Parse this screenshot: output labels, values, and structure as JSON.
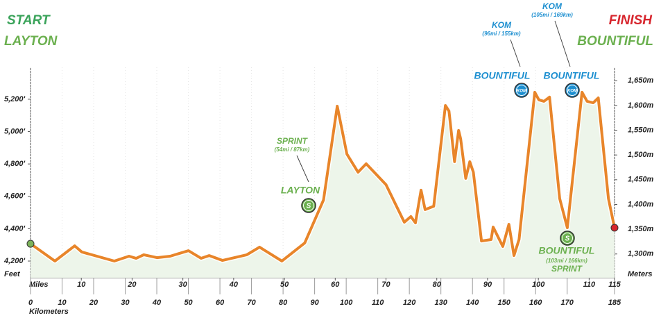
{
  "chart_data": {
    "type": "area",
    "start_label": "START",
    "start_place": "LAYTON",
    "finish_label": "FINISH",
    "finish_place": "BOUNTIFUL",
    "y_label": "Feet",
    "y2_label": "Meters",
    "x_label": "Miles",
    "x2_label": "Kilometers",
    "x": [
      0,
      4.8,
      8.7,
      10.1,
      16.5,
      19.4,
      20.8,
      22.3,
      24.9,
      27.5,
      31.1,
      33.6,
      35.2,
      37.8,
      42.6,
      45.1,
      49.5,
      54.0,
      57.7,
      60.4,
      62.3,
      64.5,
      66.1,
      70.0,
      73.6,
      74.9,
      75.8,
      76.9,
      77.7,
      79.4,
      81.7,
      82.4,
      83.5,
      84.3,
      84.7,
      85.7,
      86.5,
      87.2,
      88.8,
      90.7,
      91.1,
      93.0,
      94.2,
      95.2,
      96.2,
      99.3,
      100.1,
      101.1,
      102.2,
      104.2,
      105.7,
      108.6,
      109.6,
      110.8,
      111.8,
      113.8,
      115
    ],
    "series": [
      {
        "name": "Elevation",
        "color": "#e8852a",
        "values": [
          4307,
          4200,
          4294,
          4256,
          4200,
          4230,
          4217,
          4239,
          4221,
          4230,
          4264,
          4217,
          4234,
          4204,
          4239,
          4286,
          4200,
          4312,
          4578,
          5157,
          4861,
          4749,
          4801,
          4672,
          4440,
          4475,
          4436,
          4638,
          4518,
          4539,
          5161,
          5127,
          4814,
          5007,
          4955,
          4711,
          4814,
          4749,
          4324,
          4333,
          4410,
          4290,
          4427,
          4234,
          4333,
          5243,
          5196,
          5187,
          5213,
          4586,
          4406,
          5243,
          5187,
          5178,
          5208,
          4586,
          4406
        ]
      }
    ],
    "xlim": [
      0,
      115
    ],
    "xticks": [
      10,
      20,
      30,
      40,
      50,
      60,
      70,
      80,
      90,
      100,
      110,
      115
    ],
    "x2lim": [
      0,
      185
    ],
    "x2ticks": [
      0,
      10,
      20,
      30,
      40,
      50,
      60,
      70,
      80,
      90,
      100,
      110,
      120,
      130,
      140,
      150,
      160,
      170,
      185
    ],
    "ylim": [
      4097,
      5397
    ],
    "yticks": [
      {
        "value": 4200,
        "label": "4,200'"
      },
      {
        "value": 4400,
        "label": "4,400'"
      },
      {
        "value": 4600,
        "label": "4,600'"
      },
      {
        "value": 4800,
        "label": "4,800'"
      },
      {
        "value": 5000,
        "label": "5,000'"
      },
      {
        "value": 5200,
        "label": "5,200'"
      }
    ],
    "y2lim": [
      1252,
      1677
    ],
    "y2ticks": [
      {
        "value": 1300,
        "label": "1,300m"
      },
      {
        "value": 1350,
        "label": "1,350m"
      },
      {
        "value": 1400,
        "label": "1,400m"
      },
      {
        "value": 1450,
        "label": "1,450m"
      },
      {
        "value": 1500,
        "label": "1,500m"
      },
      {
        "value": 1550,
        "label": "1,550m"
      },
      {
        "value": 1600,
        "label": "1,600m"
      },
      {
        "value": 1650,
        "label": "1,650m"
      }
    ],
    "annotations": [
      {
        "kind": "SPRINT",
        "detail": "(54mi / 87km)",
        "place": "LAYTON",
        "icon": "S"
      },
      {
        "kind": "KOM",
        "detail": "(96mi / 155km)",
        "place": "BOUNTIFUL",
        "icon": "KOM"
      },
      {
        "kind": "KOM",
        "detail": "(105mi / 169km)",
        "place": "BOUNTIFUL",
        "icon": "KOM"
      },
      {
        "kind": "SPRINT",
        "detail": "(103mi / 166km)",
        "place": "BOUNTIFUL",
        "icon": "S"
      }
    ]
  }
}
